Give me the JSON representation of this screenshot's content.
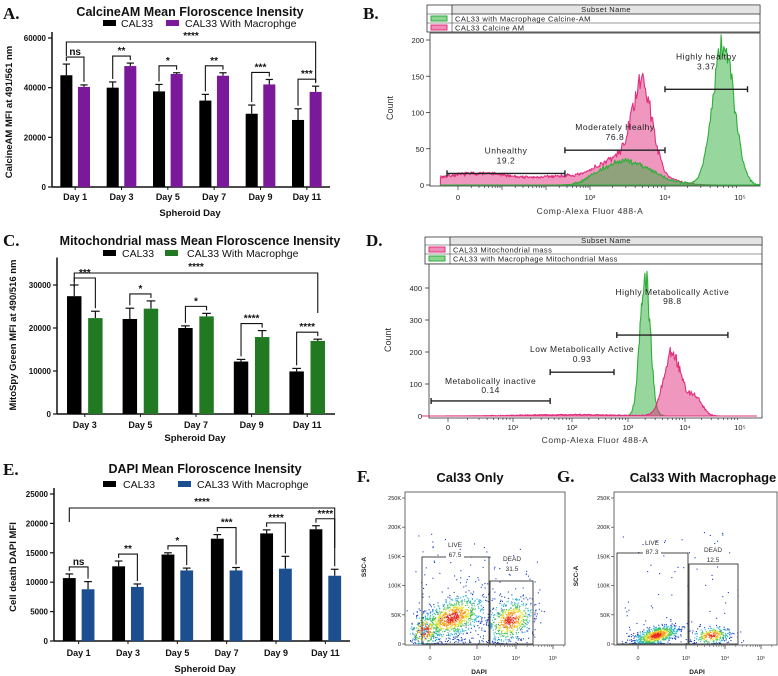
{
  "colors": {
    "cal33": "#000000",
    "purple": "#7a1a9a",
    "green": "#217a21",
    "blue": "#1c4f8f",
    "hist_pink": "#e0307e",
    "hist_green": "#2fae3a"
  },
  "chart_data": [
    {
      "type": "bar",
      "panel": "A.",
      "title": "CalcineAM Mean Floroscence Inensity",
      "xlabel": "Spheroid Day",
      "ylabel": "CalcineAM MFI at 491/561 nm",
      "ylim": [
        0,
        60000
      ],
      "yticks": [
        0,
        20000,
        40000,
        60000
      ],
      "categories": [
        "Day 1",
        "Day 3",
        "Day 5",
        "Day 7",
        "Day 9",
        "Day 11"
      ],
      "series": [
        {
          "name": "CAL33",
          "color": "#000000",
          "values": [
            45000,
            40000,
            38500,
            34800,
            29500,
            27000
          ],
          "errors": [
            4500,
            2300,
            2800,
            2500,
            3500,
            4500
          ]
        },
        {
          "name": "CAL33 With Macrophge",
          "color": "#7a1a9a",
          "values": [
            40300,
            48700,
            45500,
            44800,
            41300,
            38300
          ],
          "errors": [
            800,
            1200,
            500,
            1200,
            2000,
            2300
          ]
        }
      ],
      "significance": [
        "ns",
        "**",
        "*",
        "**",
        "***",
        "***"
      ],
      "overall_significance": "****",
      "legend_position": "top"
    },
    {
      "type": "histogram",
      "panel": "B.",
      "legend_header": "Subset Name",
      "xlabel": "Comp-Alexa Fluor 488-A",
      "ylabel": "Count",
      "yticks": [
        0,
        50,
        100,
        150,
        200
      ],
      "xticks": [
        "0",
        "10³",
        "10⁴",
        "10⁵"
      ],
      "xtick_log10": [
        0,
        3,
        4,
        5
      ],
      "series": [
        {
          "name": "CAL33 with Macrophage Calcine-AM",
          "color": "#2fae3a",
          "peaks": [
            {
              "mode": 3000,
              "count": 33,
              "spread_decades": 0.35
            },
            {
              "mode": 60000,
              "count": 195,
              "spread_decades": 0.14
            }
          ]
        },
        {
          "name": "CAL33 Calcine AM",
          "color": "#e0307e",
          "peaks": [
            {
              "mode": 3,
              "count": 16,
              "spread_decades": 1.0
            },
            {
              "mode": 300,
              "count": 10,
              "spread_decades": 0.5
            },
            {
              "mode": 3000,
              "count": 38,
              "spread_decades": 0.35
            },
            {
              "mode": 5000,
              "count": 110,
              "spread_decades": 0.13
            }
          ]
        }
      ],
      "gates": [
        {
          "label": "Unhealthy",
          "percent": "19.2",
          "range_log10": [
            -0.25,
            2.43
          ],
          "level": 16
        },
        {
          "label": "Moderately Healhy",
          "percent": "76.8",
          "range_log10": [
            2.43,
            4.0
          ],
          "level": 48
        },
        {
          "label": "Highly healthy",
          "percent": "3.37",
          "range_log10": [
            4.0,
            5.1
          ],
          "level": 132
        }
      ]
    },
    {
      "type": "bar",
      "panel": "C.",
      "title": "Mitochondrial mass Mean Floroscence Inensity",
      "xlabel": "Spheroid Day",
      "ylabel": "MitoSpy Green MFI at 490/516 nm",
      "ylim": [
        0,
        35000
      ],
      "yticks": [
        0,
        10000,
        20000,
        30000
      ],
      "categories": [
        "Day 3",
        "Day 5",
        "Day 7",
        "Day 9",
        "Day 11"
      ],
      "series": [
        {
          "name": "CAL33",
          "color": "#000000",
          "values": [
            27400,
            22100,
            20000,
            12200,
            9900
          ],
          "errors": [
            2600,
            2500,
            500,
            500,
            700
          ]
        },
        {
          "name": "CAL33 With Macrophge",
          "color": "#217a21",
          "values": [
            22300,
            24500,
            22700,
            17900,
            17000
          ],
          "errors": [
            1600,
            1800,
            700,
            1500,
            400
          ]
        }
      ],
      "significance": [
        "***",
        "*",
        "*",
        "****",
        "****"
      ],
      "overall_significance": "****",
      "legend_position": "top"
    },
    {
      "type": "histogram",
      "panel": "D.",
      "legend_header": "Subset Name",
      "xlabel": "Comp-Alexa Fluor 488-A",
      "ylabel": "Count",
      "yticks": [
        0,
        100,
        200,
        300,
        400
      ],
      "xticks": [
        "0",
        "10¹",
        "10²",
        "10³",
        "10⁴",
        "10⁵"
      ],
      "xtick_log10": [
        0,
        1,
        2,
        3,
        4,
        5
      ],
      "series": [
        {
          "name": "CAL33 Mitochondrial mass",
          "color": "#e0307e",
          "peaks": [
            {
              "mode": 100,
              "count": 4,
              "spread_decades": 0.8
            },
            {
              "mode": 6000,
              "count": 200,
              "spread_decades": 0.15
            },
            {
              "mode": 15000,
              "count": 60,
              "spread_decades": 0.13
            }
          ]
        },
        {
          "name": "CAL33 with Macrophage Mitochondrial Mass",
          "color": "#2fae3a",
          "peaks": [
            {
              "mode": 2000,
              "count": 440,
              "spread_decades": 0.09
            }
          ]
        }
      ],
      "gates": [
        {
          "label": "Metabolically inactive",
          "percent": "0.14",
          "range_log10": [
            -0.26,
            1.63
          ],
          "level": 47
        },
        {
          "label": "Low Metabolically Active",
          "percent": "0.93",
          "range_log10": [
            1.63,
            2.75
          ],
          "level": 137
        },
        {
          "label": "Highly Metabolically Active",
          "percent": "98.8",
          "range_log10": [
            2.8,
            4.78
          ],
          "level": 253
        }
      ]
    },
    {
      "type": "bar",
      "panel": "E.",
      "title": "DAPI Mean Floroscence Inensity",
      "xlabel": "Spheroid Day",
      "ylabel": "Cell death DAPI MFI",
      "ylim": [
        0,
        25000
      ],
      "yticks": [
        0,
        5000,
        10000,
        15000,
        20000,
        25000
      ],
      "categories": [
        "Day 1",
        "Day 3",
        "Day 5",
        "Day 7",
        "Day 9",
        "Day 11"
      ],
      "series": [
        {
          "name": "CAL33",
          "color": "#000000",
          "values": [
            10700,
            12700,
            14700,
            17400,
            18300,
            19000
          ],
          "errors": [
            700,
            900,
            300,
            700,
            600,
            600
          ]
        },
        {
          "name": "CAL33 With Macrophge",
          "color": "#1c4f8f",
          "values": [
            8800,
            9200,
            12000,
            12000,
            12300,
            11100
          ],
          "errors": [
            1300,
            500,
            400,
            500,
            2100,
            1100
          ]
        }
      ],
      "significance": [
        "ns",
        "**",
        "*",
        "***",
        "****",
        "****"
      ],
      "overall_significance": "****",
      "legend_position": "top"
    },
    {
      "type": "scatter",
      "panel": "F.",
      "title": "Cal33 Only",
      "xlabel": "DAPI",
      "ylabel": "SSC-A",
      "yticks": [
        "0",
        "50K",
        "100K",
        "150K",
        "200K",
        "250K"
      ],
      "xticks": [
        "0",
        "10³",
        "10⁴",
        "10⁵"
      ],
      "gates": [
        {
          "label": "LIVE",
          "percent": "67.5"
        },
        {
          "label": "DEAD",
          "percent": "31.5"
        }
      ]
    },
    {
      "type": "scatter",
      "panel": "G.",
      "title": "Cal33 With Macrophage",
      "xlabel": "DAPI",
      "ylabel": "SCC-A",
      "yticks": [
        "0",
        "50K",
        "100K",
        "150K",
        "200K",
        "250K"
      ],
      "xticks": [
        "0",
        "10³",
        "10⁴",
        "10⁵"
      ],
      "gates": [
        {
          "label": "LIVE",
          "percent": "87.3"
        },
        {
          "label": "DEAD",
          "percent": "12.5"
        }
      ]
    }
  ]
}
